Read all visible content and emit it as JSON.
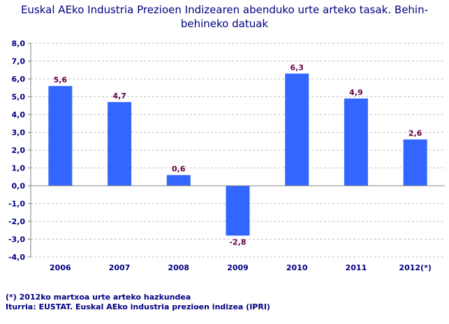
{
  "chart_data": {
    "type": "bar",
    "title": "Euskal AEko Industria Prezioen Indizearen abenduko urte arteko tasak.  Behin-behineko datuak",
    "categories": [
      "2006",
      "2007",
      "2008",
      "2009",
      "2010",
      "2011",
      "2012(*)"
    ],
    "values": [
      5.6,
      4.7,
      0.6,
      -2.8,
      6.3,
      4.9,
      2.6
    ],
    "data_labels": [
      "5,6",
      "4,7",
      "0,6",
      "-2,8",
      "6,3",
      "4,9",
      "2,6"
    ],
    "ylim": [
      -4,
      8
    ],
    "yticks": [
      "8,0",
      "7,0",
      "6,0",
      "5,0",
      "4,0",
      "3,0",
      "2,0",
      "1,0",
      "0,0",
      "-1,0",
      "-2,0",
      "-3,0",
      "-4,0"
    ],
    "grid": true,
    "bar_color": "#3366ff",
    "label_color": "#660044",
    "text_color": "#000080"
  },
  "notes": {
    "footnote": "(*) 2012ko martxoa urte arteko hazkundea",
    "source": "Iturria: EUSTAT. Euskal AEko industria prezioen indizea (IPRI)"
  }
}
